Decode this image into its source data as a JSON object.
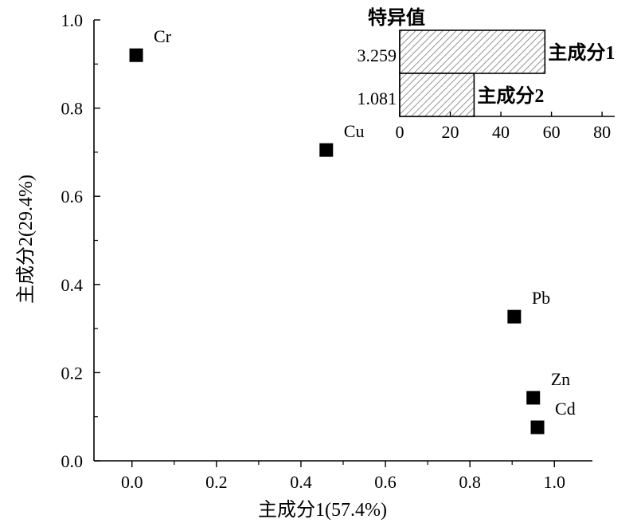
{
  "chart_data": [
    {
      "type": "scatter",
      "xlabel": "主成分1(57.4%)",
      "ylabel": "主成分2(29.4%)",
      "xlim": [
        -0.09,
        1.09
      ],
      "ylim": [
        0.0,
        1.0
      ],
      "x_ticks": [
        0.0,
        0.2,
        0.4,
        0.6,
        0.8,
        1.0
      ],
      "y_ticks": [
        0.0,
        0.2,
        0.4,
        0.6,
        0.8,
        1.0
      ],
      "x_tick_labels": [
        "0.0",
        "0.2",
        "0.4",
        "0.6",
        "0.8",
        "1.0"
      ],
      "y_tick_labels": [
        "0.0",
        "0.2",
        "0.4",
        "0.6",
        "0.8",
        "1.0"
      ],
      "marker": "filled-square",
      "marker_color": "#000000",
      "points": [
        {
          "label": "Cr",
          "x": 0.01,
          "y": 0.92
        },
        {
          "label": "Cu",
          "x": 0.46,
          "y": 0.705
        },
        {
          "label": "Pb",
          "x": 0.905,
          "y": 0.327
        },
        {
          "label": "Zn",
          "x": 0.95,
          "y": 0.143
        },
        {
          "label": "Cd",
          "x": 0.96,
          "y": 0.076
        }
      ]
    },
    {
      "type": "bar",
      "orientation": "horizontal",
      "title": "特异值",
      "categories": [
        "主成分1",
        "主成分2"
      ],
      "values": [
        57.4,
        29.4
      ],
      "value_labels": [
        "3.259",
        "1.081"
      ],
      "xlim": [
        0,
        85
      ],
      "x_ticks": [
        0,
        20,
        40,
        60,
        80
      ],
      "x_tick_labels": [
        "0",
        "20",
        "40",
        "60",
        "80"
      ],
      "bar_fill": "hatched"
    }
  ]
}
